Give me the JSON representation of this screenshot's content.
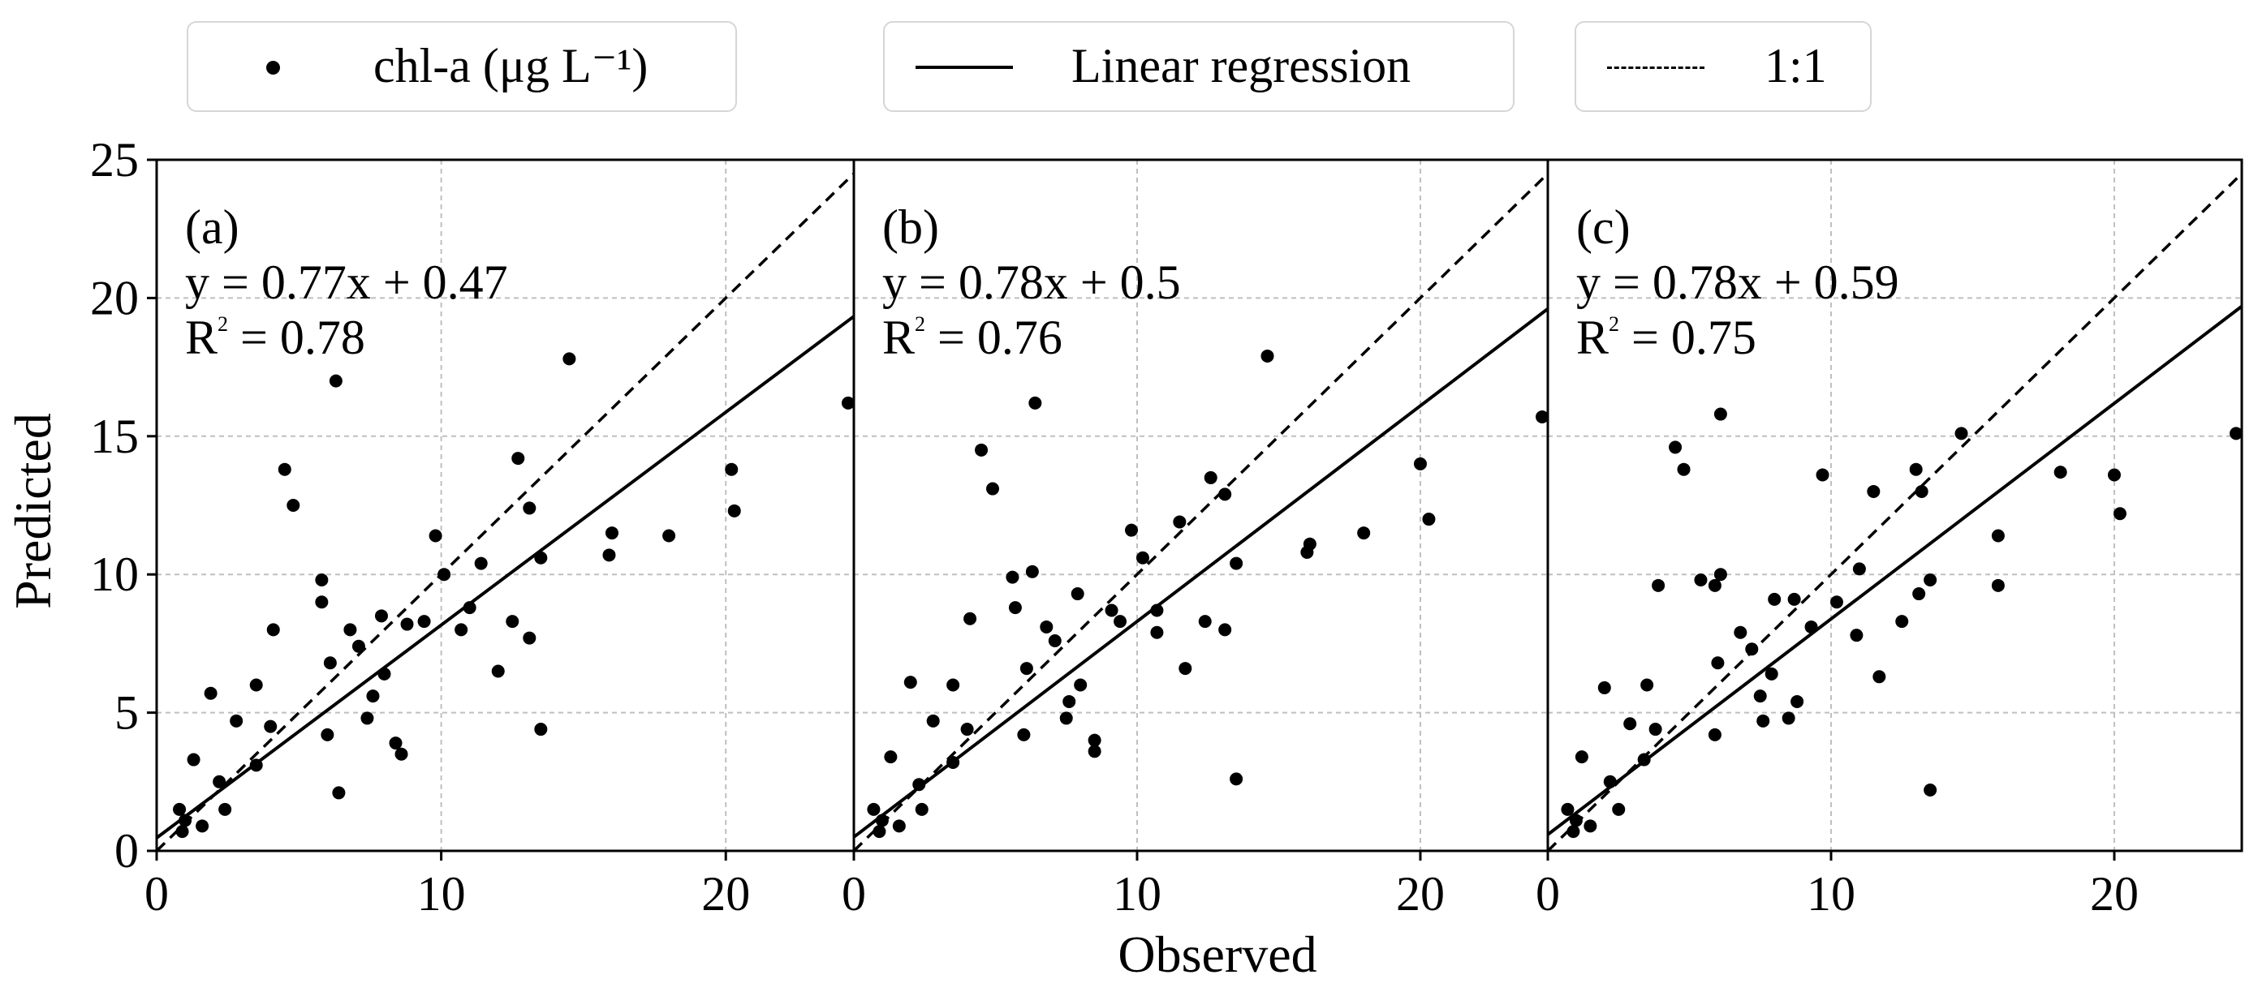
{
  "legend": {
    "items": [
      {
        "label": "chl-a (μg L⁻¹)",
        "kind": "marker"
      },
      {
        "label": "Linear regression",
        "kind": "solid-line"
      },
      {
        "label": "1:1",
        "kind": "dashed-line"
      }
    ]
  },
  "axes": {
    "xlabel": "Observed",
    "ylabel": "Predicted",
    "xlim": [
      0,
      24.5
    ],
    "ylim": [
      0,
      25
    ],
    "xticks": [
      0,
      10,
      20
    ],
    "yticks": [
      0,
      5,
      10,
      15,
      20,
      25
    ]
  },
  "chart_data": [
    {
      "type": "scatter",
      "panel_label": "(a)",
      "equation": "y = 0.77x + 0.47",
      "r2_value": " = 0.78",
      "slope": 0.77,
      "intercept": 0.47,
      "points": [
        [
          24.3,
          16.2
        ],
        [
          14.5,
          17.8
        ],
        [
          6.3,
          17.0
        ],
        [
          20.2,
          13.8
        ],
        [
          20.3,
          12.3
        ],
        [
          12.7,
          14.2
        ],
        [
          4.5,
          13.8
        ],
        [
          4.8,
          12.5
        ],
        [
          13.1,
          12.4
        ],
        [
          16.0,
          11.5
        ],
        [
          15.9,
          10.7
        ],
        [
          18.0,
          11.4
        ],
        [
          9.8,
          11.4
        ],
        [
          10.1,
          10.0
        ],
        [
          11.4,
          10.4
        ],
        [
          13.5,
          10.6
        ],
        [
          11.0,
          8.8
        ],
        [
          10.7,
          8.0
        ],
        [
          12.5,
          8.3
        ],
        [
          13.1,
          7.7
        ],
        [
          12.0,
          6.5
        ],
        [
          13.5,
          4.4
        ],
        [
          8.6,
          3.5
        ],
        [
          8.4,
          3.9
        ],
        [
          6.4,
          2.1
        ],
        [
          4.1,
          8.0
        ],
        [
          5.8,
          9.8
        ],
        [
          7.9,
          8.5
        ],
        [
          8.8,
          8.2
        ],
        [
          9.4,
          8.3
        ],
        [
          5.8,
          9.0
        ],
        [
          6.8,
          8.0
        ],
        [
          7.1,
          7.4
        ],
        [
          6.1,
          6.8
        ],
        [
          8.0,
          6.4
        ],
        [
          7.6,
          5.6
        ],
        [
          7.4,
          4.8
        ],
        [
          6.0,
          4.2
        ],
        [
          3.5,
          6.0
        ],
        [
          2.8,
          4.7
        ],
        [
          1.9,
          5.7
        ],
        [
          3.5,
          3.1
        ],
        [
          4.0,
          4.5
        ],
        [
          1.3,
          3.3
        ],
        [
          2.2,
          2.5
        ],
        [
          2.4,
          1.5
        ],
        [
          1.0,
          1.1
        ],
        [
          0.9,
          0.7
        ],
        [
          1.6,
          0.9
        ],
        [
          0.8,
          1.5
        ]
      ]
    },
    {
      "type": "scatter",
      "panel_label": "(b)",
      "equation": "y = 0.78x + 0.5",
      "r2_value": " = 0.76",
      "slope": 0.78,
      "intercept": 0.5,
      "points": [
        [
          24.3,
          15.7
        ],
        [
          14.6,
          17.9
        ],
        [
          6.4,
          16.2
        ],
        [
          20.0,
          14.0
        ],
        [
          20.3,
          12.0
        ],
        [
          12.6,
          13.5
        ],
        [
          4.5,
          14.5
        ],
        [
          4.9,
          13.1
        ],
        [
          13.1,
          12.9
        ],
        [
          16.1,
          11.1
        ],
        [
          16.0,
          10.8
        ],
        [
          18.0,
          11.5
        ],
        [
          9.8,
          11.6
        ],
        [
          10.2,
          10.6
        ],
        [
          11.5,
          11.9
        ],
        [
          13.5,
          10.4
        ],
        [
          10.7,
          8.7
        ],
        [
          10.7,
          7.9
        ],
        [
          12.4,
          8.3
        ],
        [
          13.1,
          8.0
        ],
        [
          11.7,
          6.6
        ],
        [
          13.5,
          2.6
        ],
        [
          8.5,
          4.0
        ],
        [
          8.5,
          3.6
        ],
        [
          6.3,
          10.1
        ],
        [
          4.1,
          8.4
        ],
        [
          5.6,
          9.9
        ],
        [
          7.9,
          9.3
        ],
        [
          9.1,
          8.7
        ],
        [
          9.4,
          8.3
        ],
        [
          5.7,
          8.8
        ],
        [
          6.8,
          8.1
        ],
        [
          7.1,
          7.6
        ],
        [
          6.1,
          6.6
        ],
        [
          8.0,
          6.0
        ],
        [
          7.6,
          5.4
        ],
        [
          7.5,
          4.8
        ],
        [
          6.0,
          4.2
        ],
        [
          3.5,
          6.0
        ],
        [
          2.8,
          4.7
        ],
        [
          2.0,
          6.1
        ],
        [
          3.5,
          3.2
        ],
        [
          4.0,
          4.4
        ],
        [
          1.3,
          3.4
        ],
        [
          2.3,
          2.4
        ],
        [
          2.4,
          1.5
        ],
        [
          1.0,
          1.1
        ],
        [
          0.9,
          0.7
        ],
        [
          1.6,
          0.9
        ],
        [
          0.7,
          1.5
        ]
      ]
    },
    {
      "type": "scatter",
      "panel_label": "(c)",
      "equation": "y = 0.78x + 0.59",
      "r2_value": " = 0.75",
      "slope": 0.78,
      "intercept": 0.59,
      "points": [
        [
          24.3,
          15.1
        ],
        [
          14.6,
          15.1
        ],
        [
          6.1,
          15.8
        ],
        [
          20.0,
          13.6
        ],
        [
          20.2,
          12.2
        ],
        [
          13.0,
          13.8
        ],
        [
          4.5,
          14.6
        ],
        [
          4.8,
          13.8
        ],
        [
          13.2,
          13.0
        ],
        [
          15.9,
          11.4
        ],
        [
          15.9,
          9.6
        ],
        [
          18.1,
          13.7
        ],
        [
          9.7,
          13.6
        ],
        [
          10.2,
          9.0
        ],
        [
          11.5,
          13.0
        ],
        [
          13.5,
          9.8
        ],
        [
          11.0,
          10.2
        ],
        [
          10.9,
          7.8
        ],
        [
          12.5,
          8.3
        ],
        [
          13.1,
          9.3
        ],
        [
          11.7,
          6.3
        ],
        [
          13.5,
          2.2
        ],
        [
          8.8,
          5.4
        ],
        [
          8.5,
          4.8
        ],
        [
          6.1,
          10.0
        ],
        [
          3.9,
          9.6
        ],
        [
          5.4,
          9.8
        ],
        [
          8.0,
          9.1
        ],
        [
          8.7,
          9.1
        ],
        [
          9.3,
          8.1
        ],
        [
          5.9,
          9.6
        ],
        [
          6.8,
          7.9
        ],
        [
          7.2,
          7.3
        ],
        [
          6.0,
          6.8
        ],
        [
          7.9,
          6.4
        ],
        [
          7.5,
          5.6
        ],
        [
          7.6,
          4.7
        ],
        [
          5.9,
          4.2
        ],
        [
          3.5,
          6.0
        ],
        [
          2.9,
          4.6
        ],
        [
          2.0,
          5.9
        ],
        [
          3.4,
          3.3
        ],
        [
          3.8,
          4.4
        ],
        [
          1.2,
          3.4
        ],
        [
          2.2,
          2.5
        ],
        [
          2.5,
          1.5
        ],
        [
          1.0,
          1.1
        ],
        [
          0.9,
          0.7
        ],
        [
          1.5,
          0.9
        ],
        [
          0.7,
          1.5
        ]
      ]
    }
  ]
}
